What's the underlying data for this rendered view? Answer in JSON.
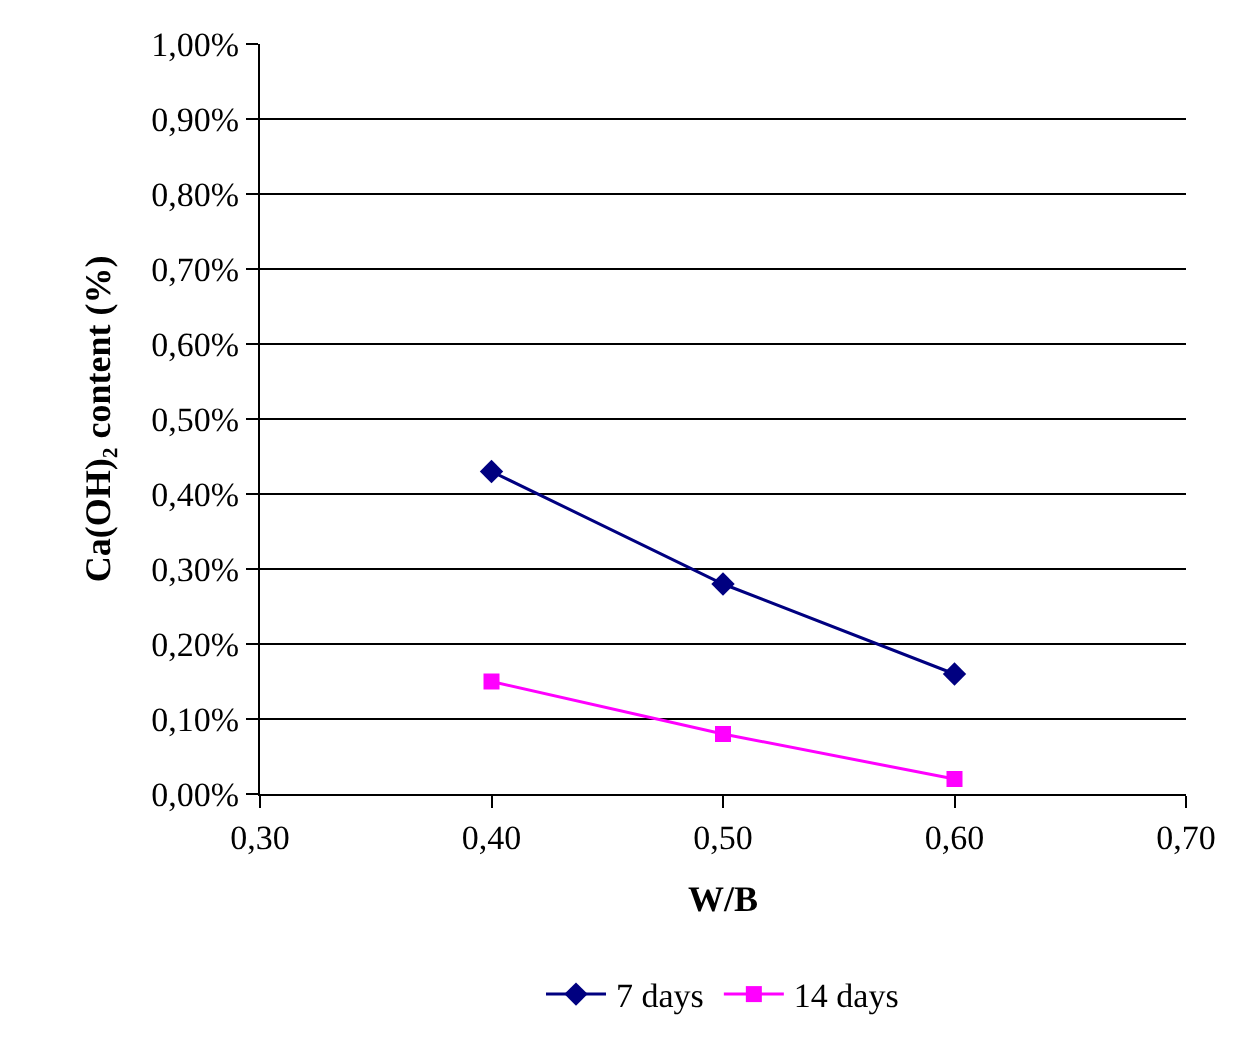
{
  "chart_data": {
    "type": "line",
    "xlabel": "W/B",
    "ylabel": "Ca(OH)₂ content (%)",
    "x": [
      0.4,
      0.5,
      0.6
    ],
    "series": [
      {
        "name": "7 days",
        "color": "#000080",
        "values": [
          0.43,
          0.28,
          0.16
        ],
        "marker": "diamond"
      },
      {
        "name": "14 days",
        "color": "#ff00ff",
        "values": [
          0.15,
          0.08,
          0.02
        ],
        "marker": "square"
      }
    ],
    "xlim": [
      0.3,
      0.7
    ],
    "xticks": [
      {
        "value": 0.3,
        "label": "0,30"
      },
      {
        "value": 0.4,
        "label": "0,40"
      },
      {
        "value": 0.5,
        "label": "0,50"
      },
      {
        "value": 0.6,
        "label": "0,60"
      },
      {
        "value": 0.7,
        "label": "0,70"
      }
    ],
    "ylim": [
      0,
      1.0
    ],
    "yticks": [
      {
        "value": 0,
        "label": "0,00%"
      },
      {
        "value": 0.1,
        "label": "0,10%"
      },
      {
        "value": 0.2,
        "label": "0,20%"
      },
      {
        "value": 0.3,
        "label": "0,30%"
      },
      {
        "value": 0.4,
        "label": "0,40%"
      },
      {
        "value": 0.5,
        "label": "0,50%"
      },
      {
        "value": 0.6,
        "label": "0,60%"
      },
      {
        "value": 0.7,
        "label": "0,70%"
      },
      {
        "value": 0.8,
        "label": "0,80%"
      },
      {
        "value": 0.9,
        "label": "0,90%"
      },
      {
        "value": 1.0,
        "label": "1,00%"
      }
    ],
    "grid": "y",
    "legend": "bottom",
    "line_style": "solid"
  }
}
